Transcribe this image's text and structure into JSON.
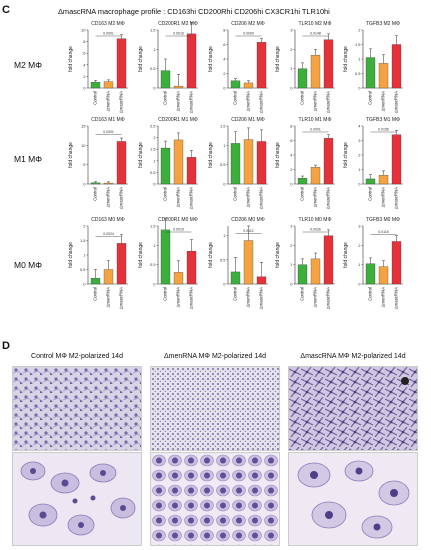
{
  "panel_c": {
    "letter": "C",
    "title": "ΔmascRNA macrophage profile : CD163hi CD200Rhi CD206hi CX3CR1hi TLR10hi",
    "row_labels": [
      "M2 MΦ",
      "M1 MΦ",
      "M0 MΦ"
    ]
  },
  "panel_d": {
    "letter": "D",
    "titles": [
      "Control MΦ M2-polarized 14d",
      "ΔmenRNA MΦ M2-polarized 14d",
      "ΔmascRNA MΦ M2-polarized 14d"
    ]
  },
  "colors": {
    "control": "#3cae3c",
    "menRNA": "#f4a340",
    "mascRNA": "#e5323a"
  },
  "chart_data": {
    "type": "bar",
    "categories": [
      "Control",
      "ΔmenRNA",
      "ΔmascRNA"
    ],
    "ylabel": "fold change",
    "panels": [
      {
        "title": "CD163 M2 MΦ",
        "values": [
          1.0,
          1.1,
          8.5
        ],
        "ylim": [
          0,
          10
        ],
        "yticks": [
          0,
          2,
          4,
          6,
          8,
          10
        ],
        "p": "0.0001"
      },
      {
        "title": "CD200R1 M2 MΦ",
        "values": [
          0.45,
          0.05,
          1.4
        ],
        "ylim": [
          0,
          1.5
        ],
        "yticks": [
          0,
          0.5,
          1.0,
          1.5
        ],
        "p": "0.0016"
      },
      {
        "title": "CD206 M2 MΦ",
        "values": [
          1.0,
          0.7,
          6.3
        ],
        "ylim": [
          0,
          8
        ],
        "yticks": [
          0,
          2,
          4,
          6,
          8
        ],
        "p": "0.0009"
      },
      {
        "title": "TLR10 M2 MΦ",
        "values": [
          1.0,
          1.7,
          2.5
        ],
        "ylim": [
          0,
          3
        ],
        "yticks": [
          0,
          1,
          2,
          3
        ],
        "p": "0.0148"
      },
      {
        "title": "TGFB3 M2 MΦ",
        "values": [
          1.05,
          0.85,
          1.5
        ],
        "ylim": [
          0,
          2
        ],
        "yticks": [
          0,
          0.5,
          1.0,
          1.5,
          2.0
        ],
        "p": ""
      },
      {
        "title": "CD163 M1 MΦ",
        "values": [
          0.3,
          0.25,
          11.0
        ],
        "ylim": [
          0,
          15
        ],
        "yticks": [
          0,
          5,
          10,
          15
        ],
        "p": "0.0001"
      },
      {
        "title": "CD200R1 M1 MΦ",
        "values": [
          1.55,
          1.9,
          1.15
        ],
        "ylim": [
          0,
          2.5
        ],
        "yticks": [
          0,
          0.5,
          1.0,
          1.5,
          2.0,
          2.5
        ],
        "p": ""
      },
      {
        "title": "CD206 M1 MΦ",
        "values": [
          1.05,
          1.15,
          1.1
        ],
        "ylim": [
          0,
          1.5
        ],
        "yticks": [
          0,
          0.5,
          1.0,
          1.5
        ],
        "p": ""
      },
      {
        "title": "TLR10 M1 MΦ",
        "values": [
          0.8,
          2.3,
          6.3
        ],
        "ylim": [
          0,
          8
        ],
        "yticks": [
          0,
          2,
          4,
          6,
          8
        ],
        "p": "0.0001"
      },
      {
        "title": "TGFB3 M1 MΦ",
        "values": [
          0.35,
          0.6,
          3.4
        ],
        "ylim": [
          0,
          4
        ],
        "yticks": [
          0,
          1,
          2,
          3,
          4
        ],
        "p": "0.0156"
      },
      {
        "title": "CD163 M0 MΦ",
        "values": [
          0.2,
          0.5,
          1.4
        ],
        "ylim": [
          0,
          2
        ],
        "yticks": [
          0,
          0.5,
          1.0,
          1.5,
          2.0
        ],
        "p": "0.0024"
      },
      {
        "title": "CD200R1 M0 MΦ",
        "values": [
          1.4,
          0.3,
          0.85
        ],
        "ylim": [
          0,
          1.5
        ],
        "yticks": [
          0,
          0.5,
          1.0,
          1.5
        ],
        "p": "0.0015"
      },
      {
        "title": "CD206 M0 MΦ",
        "values": [
          0.25,
          0.9,
          0.15
        ],
        "ylim": [
          0,
          1.2
        ],
        "yticks": [
          0,
          0.5,
          1.0
        ],
        "p": "0.0112"
      },
      {
        "title": "TLR10 M0 MΦ",
        "values": [
          1.0,
          1.3,
          2.5
        ],
        "ylim": [
          0,
          3
        ],
        "yticks": [
          0,
          1,
          2,
          3
        ],
        "p": "0.0026"
      },
      {
        "title": "TGFB3 M0 MΦ",
        "values": [
          1.05,
          0.9,
          2.2
        ],
        "ylim": [
          0,
          3
        ],
        "yticks": [
          0,
          1,
          2,
          3
        ],
        "p": "0.0116"
      }
    ]
  }
}
